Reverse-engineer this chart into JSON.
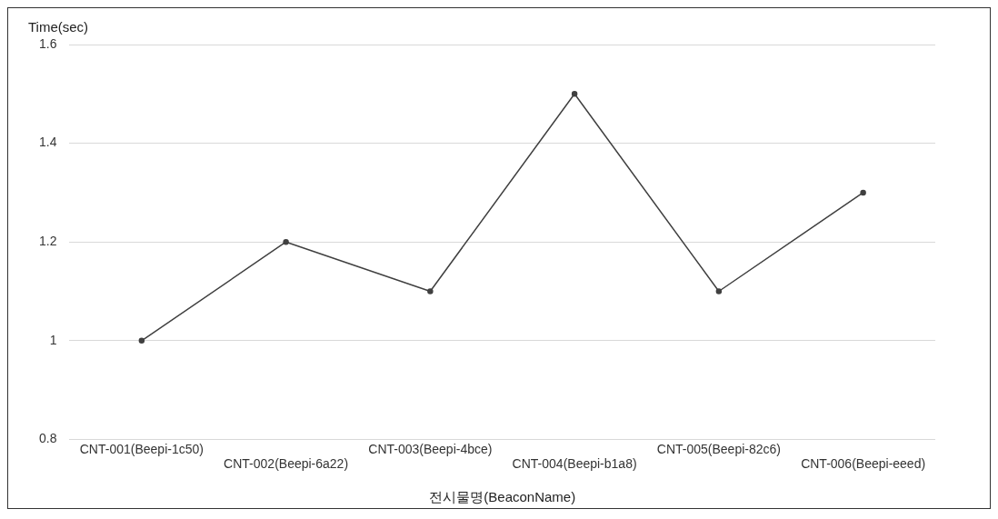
{
  "chart_data": {
    "type": "line",
    "xlabel": "전시물명(BeaconName)",
    "ylabel": "Time(sec)",
    "categories": [
      "CNT-001(Beepi-1c50)",
      "CNT-002(Beepi-6a22)",
      "CNT-003(Beepi-4bce)",
      "CNT-004(Beepi-b1a8)",
      "CNT-005(Beepi-82c6)",
      "CNT-006(Beepi-eeed)"
    ],
    "series": [
      {
        "color": "#404040",
        "values": [
          1,
          1.2,
          1.1,
          1.5,
          1.1,
          1.3
        ]
      }
    ],
    "ylim": [
      0.8,
      1.6
    ],
    "yticks": [
      0.8,
      1,
      1.2,
      1.4,
      1.6
    ],
    "grid": "y",
    "marker": "circle",
    "line_style": "solid"
  }
}
